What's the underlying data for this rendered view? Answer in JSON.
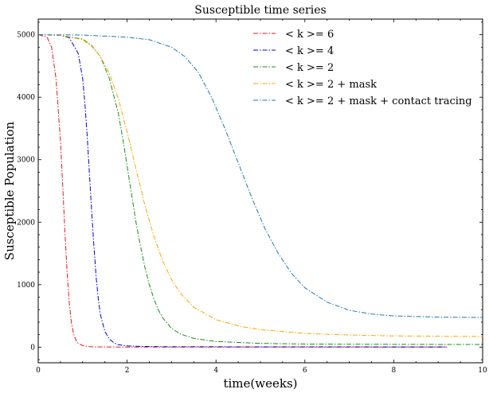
{
  "chart_data": {
    "type": "line",
    "title": "Susceptible time series",
    "xlabel": "time(weeks)",
    "ylabel": "Susceptible Population",
    "xlim": [
      0,
      10
    ],
    "ylim": [
      -250,
      5250
    ],
    "xticks": [
      0,
      2,
      4,
      6,
      8,
      10
    ],
    "yticks": [
      0,
      1000,
      2000,
      3000,
      4000,
      5000
    ],
    "grid": false,
    "legend_position": "top-right",
    "series": [
      {
        "name": "< k >= 6",
        "color": "#e41a1c",
        "x": [
          0,
          0.2,
          0.3,
          0.4,
          0.5,
          0.55,
          0.6,
          0.65,
          0.7,
          0.75,
          0.8,
          0.85,
          0.9,
          1.0,
          1.1,
          1.2,
          1.4,
          2.0,
          3.0,
          9.2
        ],
        "y": [
          5000,
          4960,
          4800,
          4300,
          3300,
          2600,
          1850,
          1200,
          700,
          380,
          200,
          110,
          60,
          25,
          12,
          6,
          3,
          2,
          1,
          1
        ]
      },
      {
        "name": "< k >= 4",
        "color": "#0000dd",
        "x": [
          0,
          0.5,
          0.7,
          0.9,
          1.0,
          1.05,
          1.1,
          1.15,
          1.2,
          1.25,
          1.3,
          1.35,
          1.4,
          1.5,
          1.6,
          1.7,
          1.8,
          2.0,
          2.3,
          3.0,
          9.2
        ],
        "y": [
          5000,
          4990,
          4950,
          4700,
          4300,
          3900,
          3400,
          2800,
          2200,
          1650,
          1150,
          780,
          520,
          250,
          130,
          70,
          40,
          20,
          12,
          6,
          3
        ]
      },
      {
        "name": "< k >= 2",
        "color": "#1a8c1a",
        "x": [
          0,
          0.5,
          1.0,
          1.2,
          1.4,
          1.6,
          1.8,
          1.9,
          2.0,
          2.1,
          2.2,
          2.3,
          2.4,
          2.5,
          2.6,
          2.7,
          2.8,
          3.0,
          3.2,
          3.5,
          4.0,
          5.0,
          6.0,
          8.0,
          10.0
        ],
        "y": [
          5000,
          4990,
          4930,
          4830,
          4650,
          4300,
          3750,
          3350,
          2900,
          2450,
          2000,
          1620,
          1280,
          1000,
          780,
          600,
          470,
          300,
          210,
          140,
          90,
          60,
          50,
          45,
          42
        ]
      },
      {
        "name": "< k >= 2 + mask",
        "color": "#ffa500",
        "x": [
          0,
          0.5,
          1.0,
          1.2,
          1.4,
          1.6,
          1.8,
          2.0,
          2.2,
          2.4,
          2.6,
          2.8,
          3.0,
          3.2,
          3.5,
          4.0,
          4.5,
          5.0,
          6.0,
          7.0,
          8.0,
          10.0
        ],
        "y": [
          5000,
          4990,
          4920,
          4820,
          4650,
          4380,
          3980,
          3450,
          2850,
          2270,
          1780,
          1380,
          1080,
          860,
          640,
          440,
          340,
          280,
          220,
          195,
          180,
          170
        ]
      },
      {
        "name": "< k >= 2 + mask + contact tracing",
        "color": "#1f77b4",
        "x": [
          0,
          1.0,
          2.0,
          2.5,
          3.0,
          3.3,
          3.6,
          3.9,
          4.2,
          4.5,
          4.8,
          5.1,
          5.4,
          5.7,
          6.0,
          6.5,
          7.0,
          7.5,
          8.0,
          9.0,
          10.0
        ],
        "y": [
          5000,
          4995,
          4960,
          4920,
          4800,
          4650,
          4400,
          4000,
          3500,
          2950,
          2400,
          1900,
          1500,
          1180,
          950,
          720,
          590,
          530,
          500,
          480,
          475
        ]
      }
    ]
  }
}
